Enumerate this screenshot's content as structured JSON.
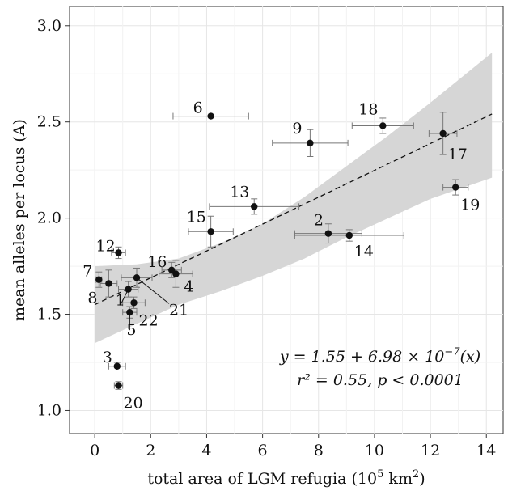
{
  "chart_data": {
    "type": "scatter",
    "xlabel": "total area of LGM refugia (10",
    "xlabel_sup": "5",
    "xlabel_mid": " km",
    "xlabel_sup2": "2",
    "xlabel_end": ")",
    "ylabel": "mean alleles per locus (A)",
    "xlim": [
      -0.9,
      14.6
    ],
    "ylim": [
      0.88,
      3.1
    ],
    "xticks": [
      0,
      2,
      4,
      6,
      8,
      10,
      12,
      14
    ],
    "yticks": [
      1.0,
      1.5,
      2.0,
      2.5,
      3.0
    ],
    "xtick_labels": [
      "0",
      "2",
      "4",
      "6",
      "8",
      "10",
      "12",
      "14"
    ],
    "ytick_labels": [
      "1.0",
      "1.5",
      "2.0",
      "2.5",
      "3.0"
    ],
    "grid": true,
    "regression": {
      "intercept": 1.55,
      "slope_per_1e5": 0.0698,
      "x_range": [
        0,
        14.2
      ],
      "ci_lower": [
        1.35,
        1.45,
        1.55,
        1.62,
        1.7,
        1.79,
        1.9,
        2.0,
        2.1,
        2.21
      ],
      "ci_upper": [
        1.75,
        1.76,
        1.79,
        1.87,
        1.97,
        2.11,
        2.27,
        2.43,
        2.6,
        2.86
      ],
      "ci_x": [
        0,
        1.5,
        3,
        4.5,
        6,
        7.5,
        9,
        10.5,
        12,
        14.2
      ]
    },
    "points": [
      {
        "id": "1",
        "x": 1.2,
        "y": 1.63,
        "xerr": 0.35,
        "yerr": 0.04
      },
      {
        "id": "2",
        "x": 8.35,
        "y": 1.92,
        "xerr": 1.2,
        "yerr": 0.05
      },
      {
        "id": "3",
        "x": 0.8,
        "y": 1.23,
        "xerr": 0.3,
        "yerr": 0.02
      },
      {
        "id": "4",
        "x": 2.9,
        "y": 1.71,
        "xerr": 0.6,
        "yerr": 0.07
      },
      {
        "id": "5",
        "x": 1.25,
        "y": 1.51,
        "xerr": 0.25,
        "yerr": 0.03
      },
      {
        "id": "6",
        "x": 4.15,
        "y": 2.53,
        "xerr": 1.35,
        "yerr": 0.0
      },
      {
        "id": "7",
        "x": 0.15,
        "y": 1.68,
        "xerr": 0.1,
        "yerr": 0.04
      },
      {
        "id": "8",
        "x": 0.5,
        "y": 1.66,
        "xerr": 0.3,
        "yerr": 0.07
      },
      {
        "id": "9",
        "x": 7.7,
        "y": 2.39,
        "xerr": 1.35,
        "yerr": 0.07
      },
      {
        "id": "12",
        "x": 0.85,
        "y": 1.82,
        "xerr": 0.25,
        "yerr": 0.03
      },
      {
        "id": "13",
        "x": 5.7,
        "y": 2.06,
        "xerr": 1.6,
        "yerr": 0.04
      },
      {
        "id": "14",
        "x": 9.1,
        "y": 1.91,
        "xerr": 1.95,
        "yerr": 0.03
      },
      {
        "id": "15",
        "x": 4.15,
        "y": 1.93,
        "xerr": 0.8,
        "yerr": 0.08
      },
      {
        "id": "16",
        "x": 2.75,
        "y": 1.73,
        "xerr": 0.35,
        "yerr": 0.04
      },
      {
        "id": "17",
        "x": 12.45,
        "y": 2.44,
        "xerr": 0.5,
        "yerr": 0.11
      },
      {
        "id": "18",
        "x": 10.3,
        "y": 2.48,
        "xerr": 1.1,
        "yerr": 0.04
      },
      {
        "id": "19",
        "x": 12.9,
        "y": 2.16,
        "xerr": 0.45,
        "yerr": 0.04
      },
      {
        "id": "20",
        "x": 0.85,
        "y": 1.13,
        "xerr": 0.15,
        "yerr": 0.02
      },
      {
        "id": "21",
        "x": 1.5,
        "y": 1.69,
        "xerr": 0.55,
        "yerr": 0.05
      },
      {
        "id": "22",
        "x": 1.4,
        "y": 1.56,
        "xerr": 0.4,
        "yerr": 0.03
      }
    ],
    "annotations": {
      "equation": "y = 1.55 + 6.98 × 10",
      "equation_sup": "−7",
      "equation_end": "(x)",
      "stats": "r² = 0.55, p < 0.0001"
    }
  }
}
